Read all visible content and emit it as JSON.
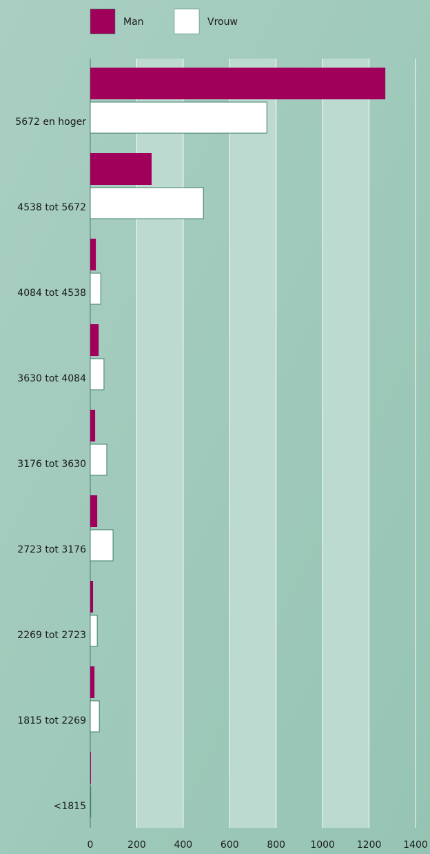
{
  "chart_data": {
    "type": "bar",
    "orientation": "horizontal",
    "categories": [
      "5672 en hoger",
      "4538 tot 5672",
      "4084 tot 4538",
      "3630 tot 4084",
      "3176 tot 3630",
      "2723 tot 3176",
      "2269 tot 2723",
      "1815 tot 2269",
      "<1815"
    ],
    "series": [
      {
        "name": "Man",
        "color": "#a0005a",
        "values": [
          1270,
          264,
          24,
          36,
          21,
          30,
          12,
          18,
          3
        ]
      },
      {
        "name": "Vrouw",
        "color": "#ffffff",
        "values": [
          760,
          487,
          45,
          59,
          71,
          98,
          30,
          39,
          2
        ]
      }
    ],
    "xlim": [
      0,
      1400
    ],
    "xticks": [
      0,
      200,
      400,
      600,
      800,
      1000,
      1200,
      1400
    ],
    "grid": true
  }
}
